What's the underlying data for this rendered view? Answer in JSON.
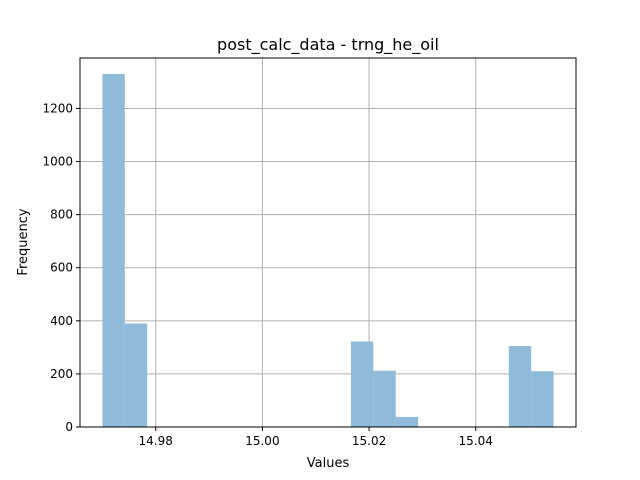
{
  "chart_data": {
    "type": "bar",
    "title": "post_calc_data - trng_he_oil",
    "xlabel": "Values",
    "ylabel": "Frequency",
    "xlim": [
      14.9658,
      15.0588
    ],
    "ylim": [
      0,
      1390
    ],
    "xticks": [
      14.98,
      15.0,
      15.02,
      15.04
    ],
    "xtick_labels": [
      "14.98",
      "15.00",
      "15.02",
      "15.04"
    ],
    "yticks": [
      0,
      200,
      400,
      600,
      800,
      1000,
      1200
    ],
    "ytick_labels": [
      "0",
      "200",
      "400",
      "600",
      "800",
      "1000",
      "1200"
    ],
    "grid": true,
    "bar_color": "#8fbad9",
    "bin_width": 0.0042,
    "bins": [
      {
        "x0": 14.97,
        "x1": 14.9742,
        "count": 1330
      },
      {
        "x0": 14.9742,
        "x1": 14.9784,
        "count": 390
      },
      {
        "x0": 15.0166,
        "x1": 15.0208,
        "count": 322
      },
      {
        "x0": 15.0208,
        "x1": 15.025,
        "count": 212
      },
      {
        "x0": 15.025,
        "x1": 15.0292,
        "count": 38
      },
      {
        "x0": 15.0462,
        "x1": 15.0504,
        "count": 305
      },
      {
        "x0": 15.0504,
        "x1": 15.0546,
        "count": 210
      }
    ]
  }
}
